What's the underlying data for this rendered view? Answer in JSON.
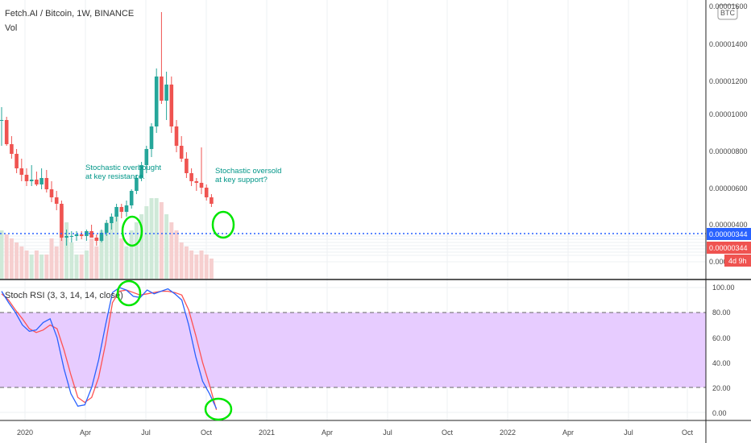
{
  "header": {
    "symbol_title": "Fetch.AI / Bitcoin, 1W, BINANCE",
    "volume_label": "Vol"
  },
  "price_axis": {
    "currency_badge": "BTC",
    "ticks": [
      "0.00001600",
      "0.00001400",
      "0.00001200",
      "0.00001000",
      "0.00000800",
      "0.00000600",
      "0.00000400",
      "0.000000"
    ],
    "last_price_blue": "0.00000344",
    "last_price_red": "0.00000344",
    "countdown": "4d 9h"
  },
  "rsi_axis": {
    "ticks": [
      "100.00",
      "80.00",
      "60.00",
      "40.00",
      "20.00",
      "0.00"
    ]
  },
  "indicator": {
    "label": "Stoch RSI (3, 3, 14, 14, close)"
  },
  "time_axis": {
    "labels": [
      "2020",
      "Apr",
      "Jul",
      "Oct",
      "2021",
      "Apr",
      "Jul",
      "Oct",
      "2022",
      "Apr",
      "Jul",
      "Oct"
    ]
  },
  "annotations": {
    "overbought": [
      "Stochastic overbought",
      "at key resistance."
    ],
    "oversold": [
      "Stochastic oversold",
      "at key support?"
    ]
  },
  "colors": {
    "up": "#26a69a",
    "down": "#ef5350",
    "vol_up": "#cfe9d8",
    "vol_down": "#f6cfcf",
    "k_line": "#2962ff",
    "d_line": "#ff5252",
    "band": "#e7ccff",
    "annotation_text": "#009688",
    "highlight_circle": "#00e600",
    "last_price_blue": "#2962ff",
    "last_price_red": "#ef5350"
  },
  "chart_data": {
    "type": "candlestick",
    "ohlc": [
      [
        8.8e-06,
        9.6e-06,
        7.2e-06,
        8.8e-06
      ],
      [
        8.8e-06,
        9e-06,
        7.2e-06,
        7.3e-06
      ],
      [
        7.3e-06,
        7.8e-06,
        6.4e-06,
        6.7e-06
      ],
      [
        6.7e-06,
        7e-06,
        5.5e-06,
        5.8e-06
      ],
      [
        5.8e-06,
        6.4e-06,
        5e-06,
        5.4e-06
      ],
      [
        5.4e-06,
        5.8e-06,
        4.7e-06,
        5e-06
      ],
      [
        5e-06,
        6e-06,
        4.7e-06,
        5.1e-06
      ],
      [
        5.1e-06,
        5.6e-06,
        4.7e-06,
        4.8e-06
      ],
      [
        4.8e-06,
        5.8e-06,
        4.5e-06,
        5.2e-06
      ],
      [
        5.2e-06,
        5.7e-06,
        4.3e-06,
        4.5e-06
      ],
      [
        4.5e-06,
        5e-06,
        3.7e-06,
        4e-06
      ],
      [
        4e-06,
        4.4e-06,
        3.2e-06,
        3.6e-06
      ],
      [
        3.6e-06,
        3.8e-06,
        1.3e-06,
        1.5e-06
      ],
      [
        1.5e-06,
        2e-06,
        1e-06,
        1.6e-06
      ],
      [
        1.6e-06,
        1.9e-06,
        1.2e-06,
        1.6e-06
      ],
      [
        1.6e-06,
        1.9e-06,
        1.3e-06,
        1.7e-06
      ],
      [
        1.7e-06,
        1.9e-06,
        1.4e-06,
        1.6e-06
      ],
      [
        1.6e-06,
        2e-06,
        1.3e-06,
        1.9e-06
      ],
      [
        1.9e-06,
        2.3e-06,
        1.5e-06,
        1.5e-06
      ],
      [
        1.5e-06,
        1.7e-06,
        1e-06,
        1.3e-06
      ],
      [
        1.3e-06,
        2e-06,
        1.2e-06,
        1.8e-06
      ],
      [
        1.8e-06,
        2.6e-06,
        1.6e-06,
        2.4e-06
      ],
      [
        2.4e-06,
        3e-06,
        2e-06,
        2.8e-06
      ],
      [
        2.8e-06,
        3.6e-06,
        2.5e-06,
        3.4e-06
      ],
      [
        3.4e-06,
        3.6e-06,
        2.7e-06,
        3.1e-06
      ],
      [
        3.1e-06,
        3.8e-06,
        2.8e-06,
        3.5e-06
      ],
      [
        3.5e-06,
        4.5e-06,
        3.3e-06,
        4.4e-06
      ],
      [
        4.4e-06,
        5.4e-06,
        4.2e-06,
        5.2e-06
      ],
      [
        5.2e-06,
        6.2e-06,
        5e-06,
        6e-06
      ],
      [
        6e-06,
        7.2e-06,
        5.5e-06,
        7e-06
      ],
      [
        7e-06,
        8.6e-06,
        6.5e-06,
        8.4e-06
      ],
      [
        8.4e-06,
        1.2e-05,
        8e-06,
        1.15e-05
      ],
      [
        1.15e-05,
        1.55e-05,
        9.8e-06,
        1e-05
      ],
      [
        1e-05,
        1.18e-05,
        8.8e-06,
        1.1e-05
      ],
      [
        1.1e-05,
        1.15e-05,
        8e-06,
        8.4e-06
      ],
      [
        8.4e-06,
        8.8e-06,
        6.8e-06,
        7.2e-06
      ],
      [
        7.2e-06,
        7.8e-06,
        6.2e-06,
        6.4e-06
      ],
      [
        6.4e-06,
        6.8e-06,
        5.2e-06,
        5.5e-06
      ],
      [
        5.5e-06,
        5.8e-06,
        4.7e-06,
        5e-06
      ],
      [
        5e-06,
        5.2e-06,
        4.4e-06,
        4.9e-06
      ],
      [
        4.9e-06,
        7.1e-06,
        4.2e-06,
        4.6e-06
      ],
      [
        4.6e-06,
        4.8e-06,
        3.8e-06,
        4e-06
      ],
      [
        4e-06,
        4.2e-06,
        3.4e-06,
        3.6e-06
      ]
    ],
    "volume": [
      0.6,
      0.55,
      0.5,
      0.45,
      0.4,
      0.35,
      0.3,
      0.35,
      0.3,
      0.3,
      0.5,
      0.4,
      0.9,
      0.7,
      0.45,
      0.3,
      0.3,
      0.35,
      0.5,
      0.4,
      0.6,
      0.7,
      0.7,
      0.8,
      0.5,
      0.4,
      0.6,
      0.7,
      0.8,
      0.9,
      1.0,
      1.0,
      0.95,
      0.8,
      0.7,
      0.6,
      0.45,
      0.4,
      0.35,
      0.3,
      0.35,
      0.3,
      0.25
    ],
    "stoch_k": [
      97,
      88,
      80,
      70,
      65,
      66,
      72,
      75,
      60,
      35,
      15,
      5,
      6,
      20,
      42,
      70,
      96,
      100,
      98,
      93,
      92,
      98,
      95,
      97,
      99,
      95,
      90,
      70,
      45,
      25,
      15,
      3
    ],
    "stoch_d": [
      95,
      90,
      82,
      75,
      67,
      64,
      66,
      70,
      67,
      50,
      30,
      12,
      8,
      12,
      28,
      55,
      88,
      97,
      98,
      96,
      94,
      95,
      96,
      97,
      97,
      96,
      94,
      82,
      62,
      40,
      22,
      2
    ],
    "price_ylim": [
      0,
      1.6e-05
    ],
    "stoch_ylim": [
      0,
      100
    ],
    "stoch_bands": [
      80,
      20
    ],
    "last_price": 3.44e-06
  }
}
